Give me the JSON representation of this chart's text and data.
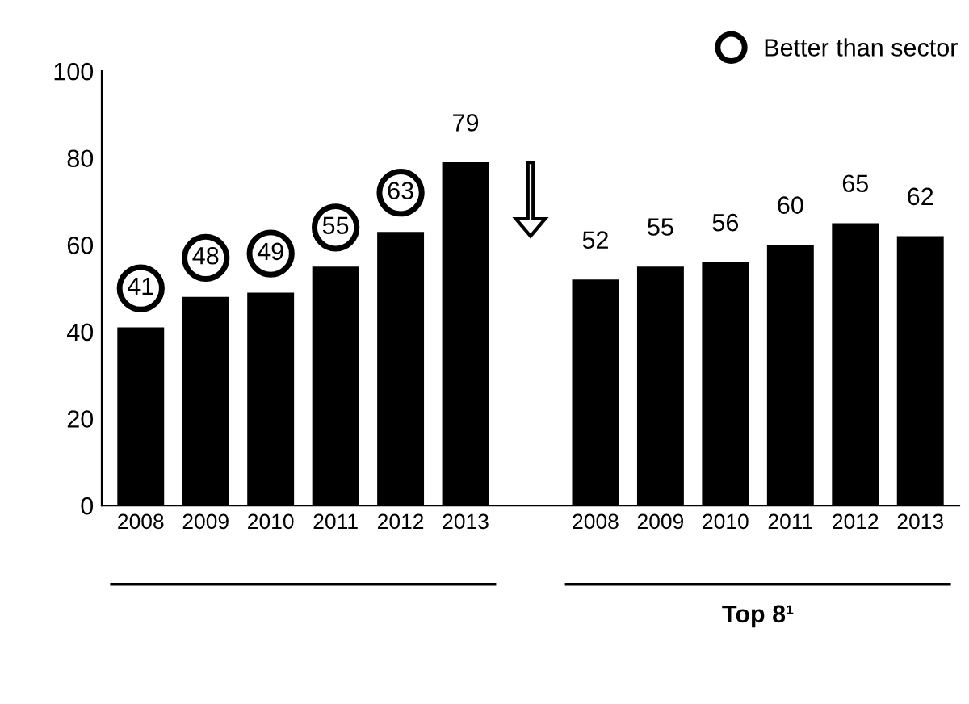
{
  "chart_data": {
    "type": "bar",
    "categories": [
      "2008",
      "2009",
      "2010",
      "2011",
      "2012",
      "2013",
      null,
      "2008",
      "2009",
      "2010",
      "2011",
      "2012",
      "2013"
    ],
    "series": [
      {
        "name": "Better than sector",
        "color": "#000000",
        "values": [
          41,
          48,
          49,
          55,
          63,
          null,
          null,
          null,
          null,
          null,
          null,
          null,
          null
        ]
      },
      {
        "color": "#000000",
        "values": [
          null,
          null,
          null,
          null,
          null,
          79,
          null,
          52,
          55,
          56,
          60,
          65,
          62
        ]
      }
    ],
    "ylim": [
      0,
      100
    ],
    "yticks": [
      0,
      20,
      40,
      60,
      80,
      100
    ],
    "data_labels": true,
    "grid": false,
    "legend": "top right",
    "annotations": [
      "Top 8¹"
    ]
  }
}
